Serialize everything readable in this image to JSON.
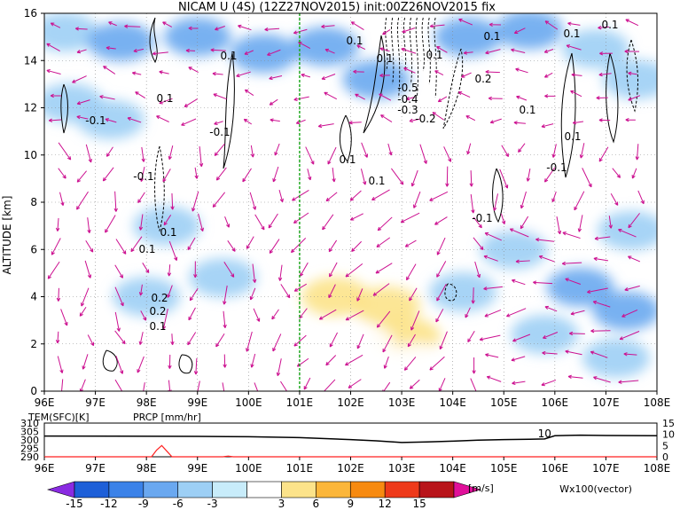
{
  "chart_data": [
    {
      "type": "heatmap",
      "title": "NICAM U (4S) (12Z27NOV2015) init:00Z26NOV2015 fix",
      "xlabel": "",
      "ylabel": "ALTITUDE [km]",
      "xlim": [
        96,
        108
      ],
      "ylim": [
        0,
        16
      ],
      "x_ticks": [
        "96E",
        "97E",
        "98E",
        "99E",
        "100E",
        "101E",
        "102E",
        "103E",
        "104E",
        "105E",
        "106E",
        "107E",
        "108E"
      ],
      "y_ticks": [
        "0",
        "2",
        "4",
        "6",
        "8",
        "10",
        "12",
        "14",
        "16"
      ],
      "grid": true,
      "marker_line_lon": 101.0,
      "marker_line_color": "#22aa22",
      "colorbar": {
        "levels": [
          "-15",
          "-12",
          "-9",
          "-6",
          "-3",
          "3",
          "6",
          "9",
          "12",
          "15"
        ],
        "unit": "[m/s]",
        "colors": [
          "#8a2be2",
          "#1e5fd8",
          "#3b82e8",
          "#6aa8f0",
          "#9dcff5",
          "#c8ecfa",
          "#ffffff",
          "#fce38a",
          "#fbb63a",
          "#f78a10",
          "#ee3a1a",
          "#b8141a",
          "#e0109a"
        ]
      },
      "vector_label": "Wx100(vector)",
      "vector_color": "#cc1090",
      "contour_labels": [
        "0.1",
        "0.1",
        "0.1",
        "-0.1",
        "-0.1",
        "0.1",
        "0.2",
        "0.1",
        "0.1",
        "0.1",
        "-0.1",
        "0.1",
        "-0.1",
        "0.2",
        "0.1",
        "-0.5",
        "-0.4",
        "-0.3",
        "-0.2",
        "0.1",
        "0.1",
        "0.1",
        "0.1",
        "0.2",
        "0.1",
        "0.1",
        "-0.1"
      ],
      "cells": [
        {
          "lon": 96.4,
          "alt": 15.2,
          "u": -5
        },
        {
          "lon": 97.5,
          "alt": 14.8,
          "u": -7
        },
        {
          "lon": 99.0,
          "alt": 15.0,
          "u": -9
        },
        {
          "lon": 100.3,
          "alt": 14.3,
          "u": -9
        },
        {
          "lon": 101.5,
          "alt": 14.6,
          "u": -9
        },
        {
          "lon": 102.5,
          "alt": 13.2,
          "u": -7
        },
        {
          "lon": 104.3,
          "alt": 15.0,
          "u": -9
        },
        {
          "lon": 105.5,
          "alt": 15.3,
          "u": -7
        },
        {
          "lon": 106.8,
          "alt": 14.5,
          "u": -5
        },
        {
          "lon": 107.6,
          "alt": 13.2,
          "u": -4
        },
        {
          "lon": 97.3,
          "alt": 11.5,
          "u": -4
        },
        {
          "lon": 96.5,
          "alt": 12.2,
          "u": -4
        },
        {
          "lon": 98.4,
          "alt": 7.0,
          "u": -4
        },
        {
          "lon": 98.0,
          "alt": 4.0,
          "u": -4
        },
        {
          "lon": 101.9,
          "alt": 11.0,
          "u": 4
        },
        {
          "lon": 99.2,
          "alt": 8.9,
          "u": 5
        },
        {
          "lon": 101.5,
          "alt": 9.0,
          "u": 5
        },
        {
          "lon": 102.2,
          "alt": 7.6,
          "u": 5
        },
        {
          "lon": 103.8,
          "alt": 10.5,
          "u": 5
        },
        {
          "lon": 104.5,
          "alt": 8.3,
          "u": 4
        },
        {
          "lon": 106.1,
          "alt": 10.9,
          "u": 4
        },
        {
          "lon": 105.4,
          "alt": 7.4,
          "u": 3
        },
        {
          "lon": 101.7,
          "alt": 4.0,
          "u": 6
        },
        {
          "lon": 102.7,
          "alt": 3.6,
          "u": 8
        },
        {
          "lon": 103.1,
          "alt": 2.3,
          "u": 8
        },
        {
          "lon": 102.2,
          "alt": 2.0,
          "u": 5
        },
        {
          "lon": 103.3,
          "alt": 1.2,
          "u": 5
        },
        {
          "lon": 99.5,
          "alt": 4.8,
          "u": -4
        },
        {
          "lon": 104.2,
          "alt": 4.2,
          "u": -4
        },
        {
          "lon": 106.5,
          "alt": 4.4,
          "u": -7
        },
        {
          "lon": 107.4,
          "alt": 3.4,
          "u": -9
        },
        {
          "lon": 105.2,
          "alt": 6.0,
          "u": -4
        },
        {
          "lon": 107.5,
          "alt": 6.8,
          "u": -5
        },
        {
          "lon": 107.2,
          "alt": 1.4,
          "u": -4
        },
        {
          "lon": 96.7,
          "alt": 2.8,
          "u": 4
        },
        {
          "lon": 105.8,
          "alt": 2.4,
          "u": -4
        }
      ]
    },
    {
      "type": "line",
      "title": "",
      "series": [
        {
          "name": "TEM(SFC)[K]",
          "color": "#000000",
          "x": [
            96.0,
            99.0,
            100.0,
            101.0,
            102.0,
            102.5,
            103.0,
            103.5,
            104.0,
            104.5,
            105.0,
            105.5,
            105.8,
            106.0,
            106.5,
            107.0,
            108.0
          ],
          "values": [
            302.3,
            302.1,
            301.9,
            301.4,
            300.2,
            299.5,
            298.5,
            298.8,
            299.3,
            299.9,
            300.2,
            300.4,
            300.6,
            302.5,
            302.8,
            302.6,
            302.5
          ]
        },
        {
          "name": "PRCP [mm/hr]",
          "color": "#ff2020",
          "x": [
            96.0,
            98.1,
            98.2,
            98.3,
            98.4,
            98.5,
            99.5,
            99.6,
            99.7,
            101.0,
            108.0
          ],
          "values": [
            0,
            0,
            3.0,
            5.0,
            2.5,
            0,
            0,
            0.3,
            0,
            0,
            0
          ]
        }
      ],
      "x_ticks": [
        "96E",
        "97E",
        "98E",
        "99E",
        "100E",
        "101E",
        "102E",
        "103E",
        "104E",
        "105E",
        "106E",
        "107E",
        "108E"
      ],
      "y_ticks_left": [
        "290",
        "295",
        "300",
        "305",
        "310"
      ],
      "y_ticks_right": [
        "0",
        "5",
        "10",
        "15"
      ],
      "ylim_left": [
        290,
        310
      ],
      "ylim_right": [
        0,
        15
      ],
      "annotation": "10"
    }
  ]
}
